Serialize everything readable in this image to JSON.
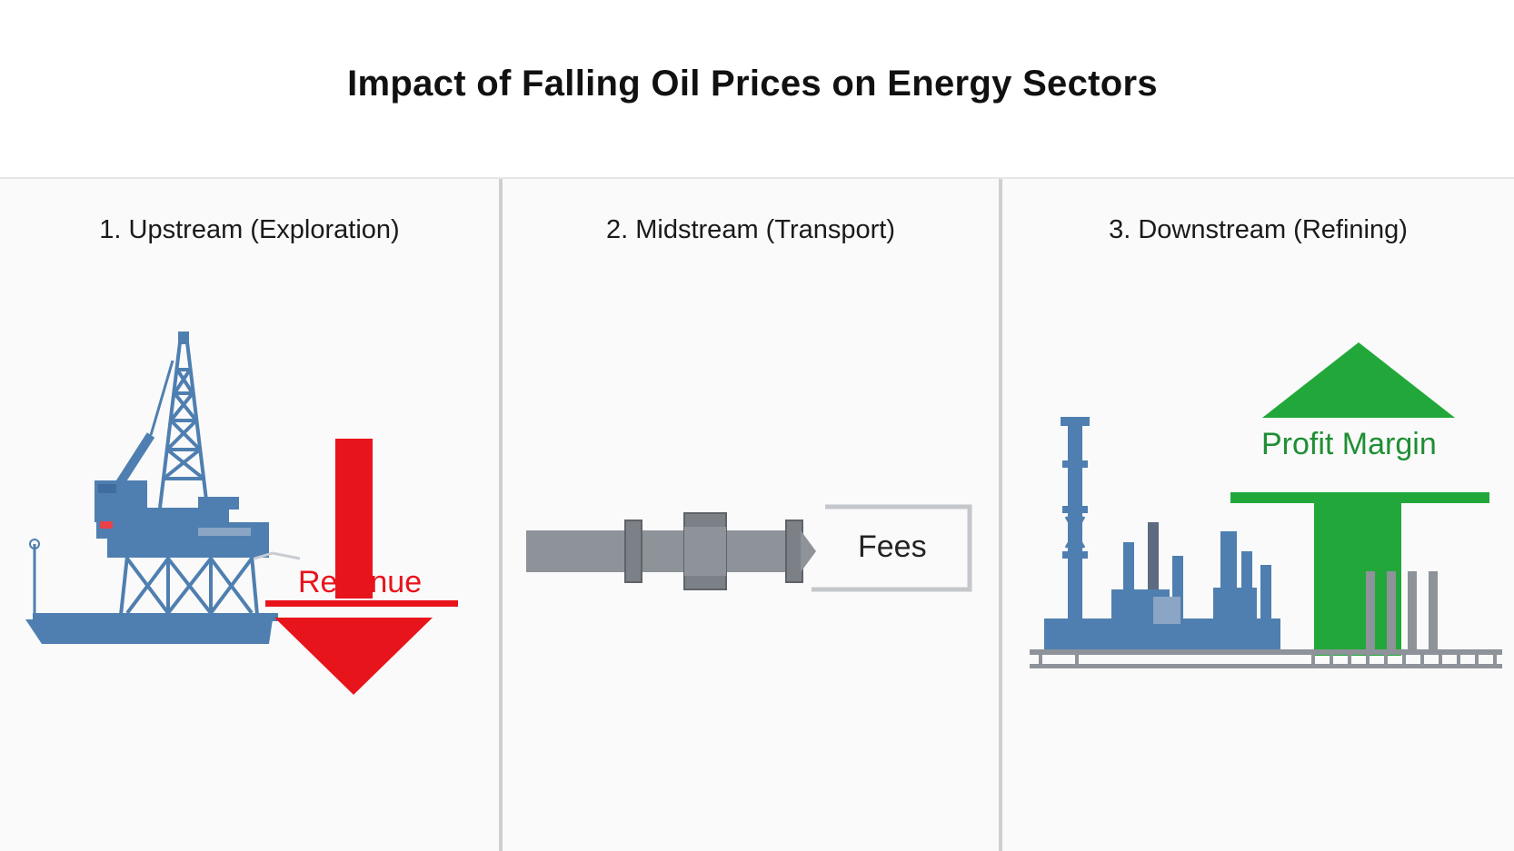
{
  "title": "Impact of Falling Oil Prices on Energy Sectors",
  "sectors": [
    {
      "heading": "1. Upstream (Exploration)",
      "indicator": "Revenue",
      "direction": "down",
      "color": "#e8141c",
      "icon": "offshore-rig-icon"
    },
    {
      "heading": "2. Midstream (Transport)",
      "indicator": "Fees",
      "direction": "flat",
      "color": "#8e9299",
      "icon": "pipeline-icon"
    },
    {
      "heading": "3. Downstream (Refining)",
      "indicator": "Profit Margin",
      "direction": "up",
      "color": "#22a83a",
      "icon": "refinery-icon"
    }
  ],
  "colors": {
    "industrial_blue": "#4f7fb0",
    "down": "#e8141c",
    "up": "#22a83a",
    "pipe_gray": "#8e9299"
  }
}
